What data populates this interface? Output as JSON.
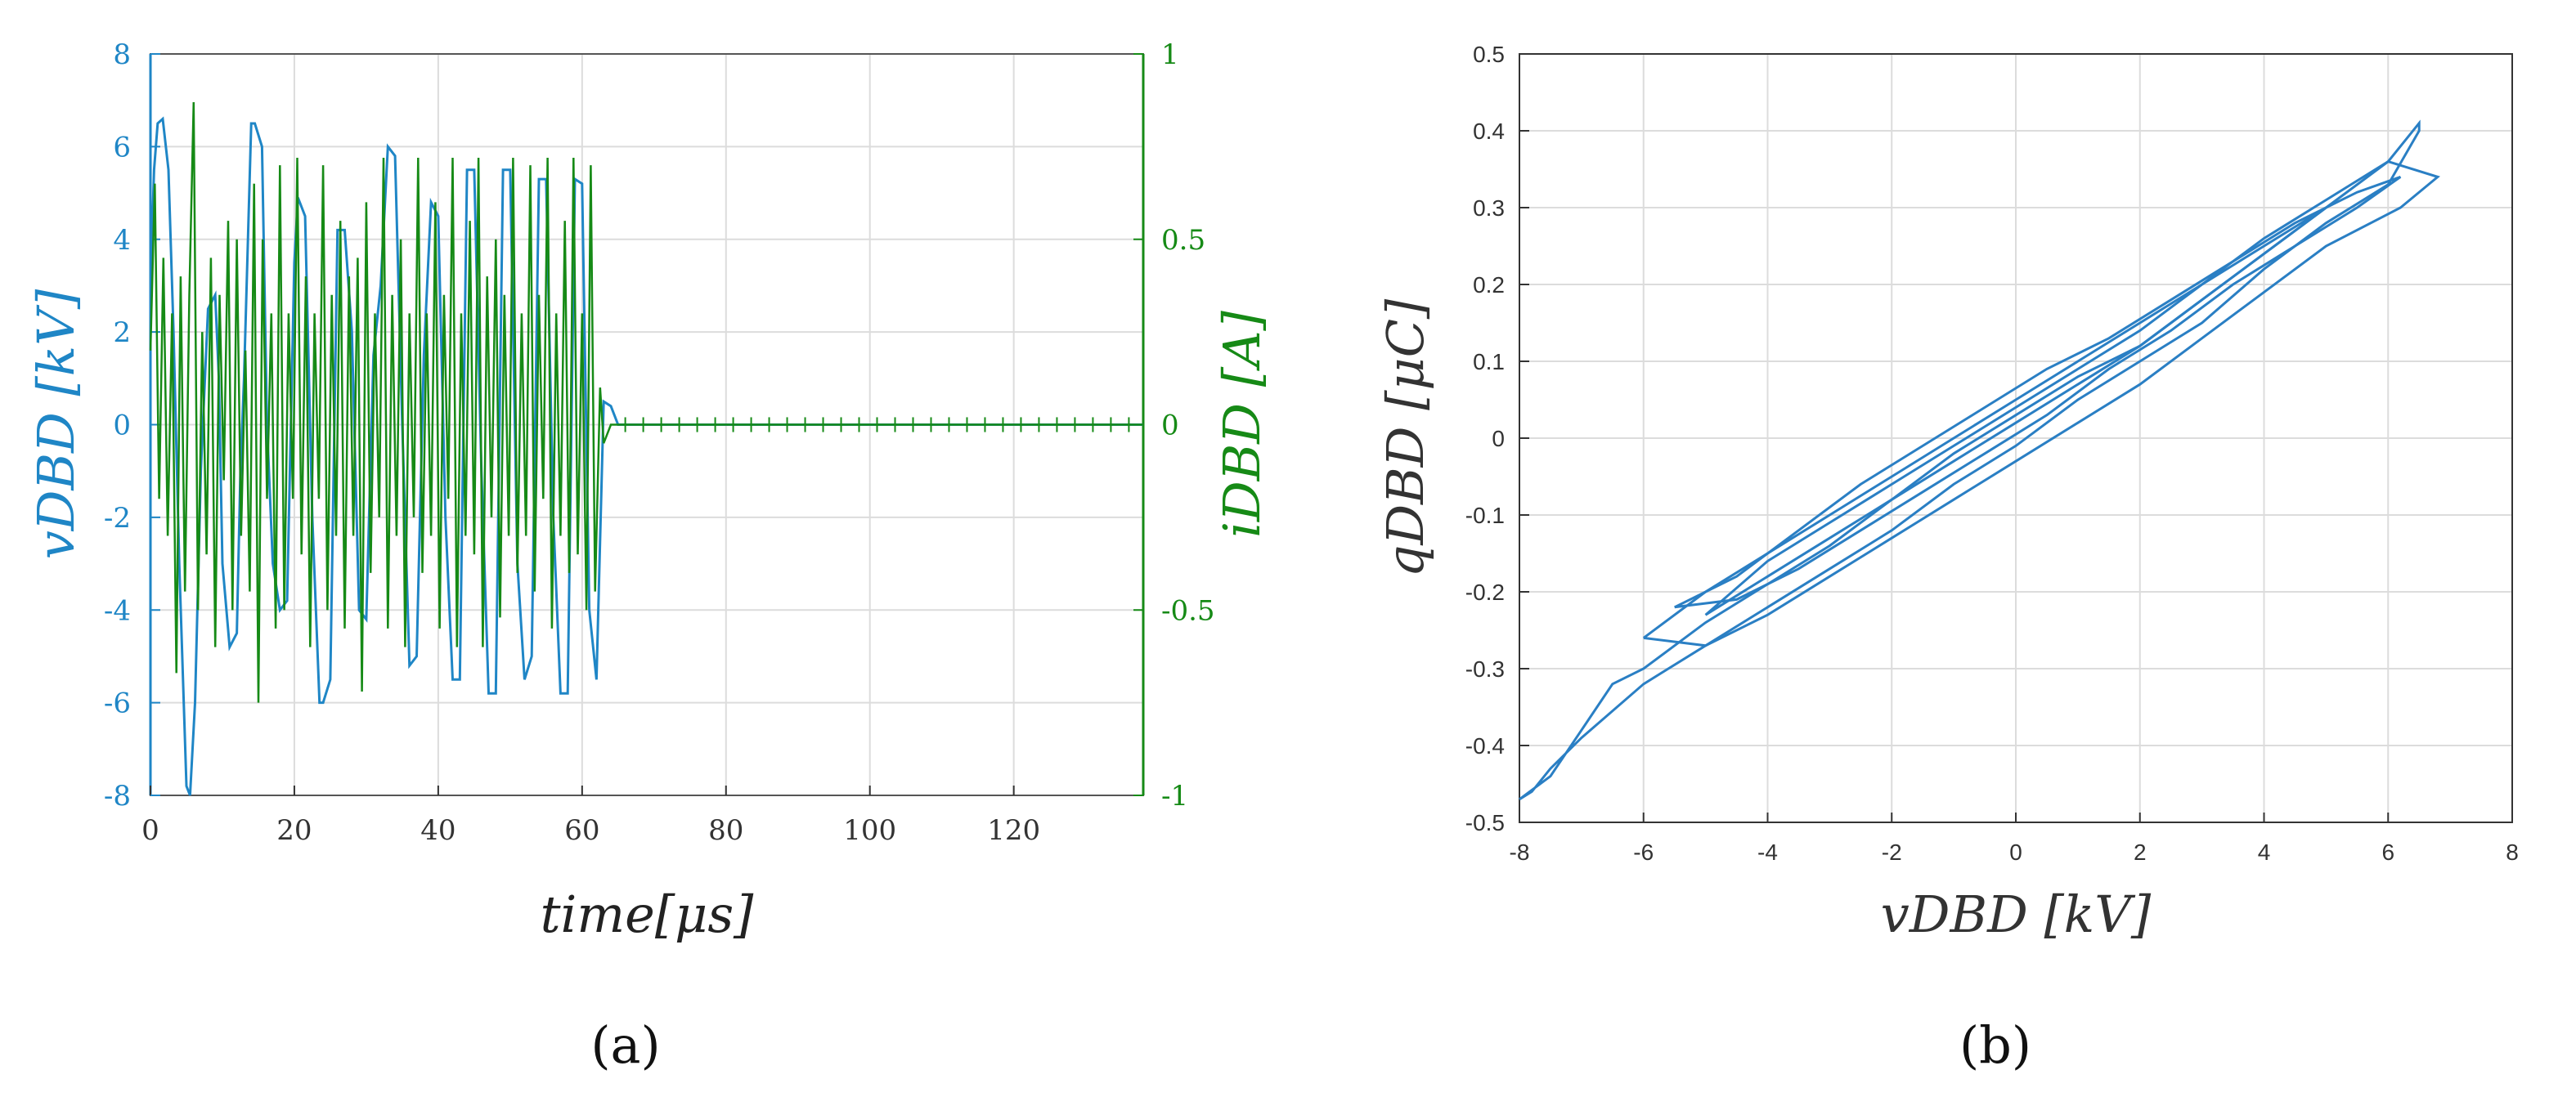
{
  "colors": {
    "voltage": "#1f86c6",
    "current": "#168a16",
    "loop": "#2a7fc4",
    "axis_b": "#333333"
  },
  "chart_data": [
    {
      "id": "a",
      "type": "line",
      "panel_label": "(a)",
      "xlabel": "time[μs]",
      "ylabel_left": "vDBD [kV]",
      "ylabel_right": "iDBD [A]",
      "xlim": [
        0,
        138
      ],
      "ylim_left": [
        -8,
        8
      ],
      "ylim_right": [
        -1,
        1
      ],
      "xticks": [
        0,
        20,
        40,
        60,
        80,
        100,
        120
      ],
      "yticks_left": [
        -8,
        -6,
        -4,
        -2,
        0,
        2,
        4,
        6,
        8
      ],
      "yticks_right": [
        -1,
        -0.5,
        0,
        0.5,
        1
      ],
      "grid": true,
      "series": [
        {
          "axis": "left",
          "x": [
            0,
            0.5,
            1,
            1.7,
            2.5,
            3.2,
            4,
            5,
            5.5,
            6.2,
            7,
            8,
            9,
            9.5,
            10,
            11,
            12,
            12.5,
            13,
            14,
            14.5,
            15.5,
            16.2,
            17,
            18,
            19,
            20,
            20.5,
            21.5,
            22.5,
            23.5,
            24,
            25,
            26,
            27,
            28,
            29,
            30,
            31,
            32,
            33,
            34,
            35,
            36,
            37,
            38,
            39,
            40,
            41,
            42,
            43,
            44,
            45,
            46,
            47,
            48,
            49,
            50,
            51,
            52,
            53,
            54,
            55,
            56,
            57,
            58,
            59,
            60,
            61,
            62,
            63,
            64,
            65,
            66,
            138
          ],
          "y": [
            3,
            5.5,
            6.5,
            6.6,
            5.5,
            2,
            -3,
            -7.8,
            -8,
            -6,
            -1,
            2.5,
            2.8,
            1,
            -3,
            -4.8,
            -4.5,
            -1,
            1,
            6.5,
            6.5,
            6,
            0,
            -3,
            -4,
            -3.8,
            3.5,
            4.9,
            4.5,
            -2,
            -6,
            -6,
            -5.5,
            4.2,
            4.2,
            2,
            -4,
            -4.2,
            1.5,
            3,
            6,
            5.8,
            0,
            -5.2,
            -5,
            1.5,
            4.8,
            4.5,
            -2,
            -5.5,
            -5.5,
            5.5,
            5.5,
            -1,
            -5.8,
            -5.8,
            5.5,
            5.5,
            -3,
            -5.5,
            -5,
            5.3,
            5.3,
            -2,
            -5.8,
            -5.8,
            5.3,
            5.2,
            -4,
            -5.5,
            0.5,
            0.4,
            0,
            0,
            0
          ]
        },
        {
          "axis": "right",
          "x": [
            0,
            0.6,
            1.2,
            1.8,
            2.4,
            3,
            3.6,
            4.2,
            4.8,
            5.4,
            6,
            6.6,
            7.2,
            7.8,
            8.4,
            9,
            9.6,
            10.2,
            10.8,
            11.4,
            12,
            12.6,
            13.2,
            13.8,
            14.4,
            15,
            15.6,
            16.2,
            16.8,
            17.4,
            18,
            18.6,
            19.2,
            19.8,
            20.4,
            21,
            21.6,
            22.2,
            22.8,
            23.4,
            24,
            24.6,
            25.2,
            25.8,
            26.4,
            27,
            27.6,
            28.2,
            28.8,
            29.4,
            30,
            30.6,
            31.2,
            31.8,
            32.4,
            33,
            33.6,
            34.2,
            34.8,
            35.4,
            36,
            36.6,
            37.2,
            37.8,
            38.4,
            39,
            39.6,
            40.2,
            40.8,
            41.4,
            42,
            42.6,
            43.2,
            43.8,
            44.4,
            45,
            45.6,
            46.2,
            46.8,
            47.4,
            48,
            48.6,
            49.2,
            49.8,
            50.4,
            51,
            51.6,
            52.2,
            52.8,
            53.4,
            54,
            54.6,
            55.2,
            55.8,
            56.4,
            57,
            57.6,
            58.2,
            58.8,
            59.4,
            60,
            60.6,
            61.2,
            61.8,
            62.5,
            63,
            64,
            138
          ],
          "y": [
            0.2,
            0.65,
            -0.2,
            0.45,
            -0.3,
            0.3,
            -0.67,
            0.4,
            -0.45,
            0.35,
            0.87,
            -0.5,
            0.25,
            -0.35,
            0.45,
            -0.6,
            0.35,
            -0.15,
            0.55,
            -0.5,
            0.5,
            -0.3,
            0.2,
            -0.45,
            0.65,
            -0.75,
            0.5,
            -0.2,
            0.3,
            -0.55,
            0.7,
            -0.5,
            0.3,
            -0.2,
            0.72,
            -0.35,
            0.4,
            -0.6,
            0.3,
            -0.2,
            0.7,
            -0.5,
            0.35,
            -0.3,
            0.55,
            -0.55,
            0.4,
            -0.3,
            0.45,
            -0.72,
            0.6,
            -0.4,
            0.3,
            -0.25,
            0.72,
            -0.55,
            0.35,
            -0.3,
            0.5,
            -0.6,
            0.3,
            -0.25,
            0.72,
            -0.4,
            0.3,
            -0.3,
            0.6,
            -0.55,
            0.35,
            -0.2,
            0.72,
            -0.6,
            0.3,
            -0.3,
            0.55,
            -0.35,
            0.72,
            -0.6,
            0.4,
            -0.25,
            0.5,
            -0.52,
            0.35,
            -0.3,
            0.72,
            -0.4,
            0.3,
            -0.3,
            0.7,
            -0.45,
            0.35,
            -0.2,
            0.72,
            -0.55,
            0.3,
            -0.3,
            0.55,
            -0.4,
            0.72,
            -0.35,
            0.3,
            -0.5,
            0.7,
            -0.45,
            0.1,
            -0.05,
            0,
            0
          ]
        }
      ]
    },
    {
      "id": "b",
      "type": "line",
      "panel_label": "(b)",
      "xlabel": "vDBD [kV]",
      "ylabel": "qDBD [μC]",
      "xlim": [
        -8,
        8
      ],
      "ylim": [
        -0.5,
        0.5
      ],
      "xticks": [
        -8,
        -6,
        -4,
        -2,
        0,
        2,
        4,
        6,
        8
      ],
      "yticks": [
        -0.5,
        -0.4,
        -0.3,
        -0.2,
        -0.1,
        0,
        0.1,
        0.2,
        0.3,
        0.4,
        0.5
      ],
      "grid": true,
      "series": [
        {
          "x": [
            -8,
            -7.5,
            -7,
            -6.5,
            -6,
            -5,
            -4,
            -3,
            -2,
            -1,
            0,
            1,
            2,
            3,
            4,
            5,
            6,
            6.5,
            6.5,
            6,
            5,
            4,
            3,
            2,
            1,
            0,
            -1,
            -2,
            -3,
            -4,
            -5,
            -6,
            -7,
            -7.5,
            -7.8,
            -8
          ],
          "y": [
            -0.47,
            -0.44,
            -0.38,
            -0.32,
            -0.3,
            -0.24,
            -0.19,
            -0.14,
            -0.08,
            -0.02,
            0.03,
            0.08,
            0.12,
            0.18,
            0.24,
            0.3,
            0.36,
            0.41,
            0.4,
            0.33,
            0.28,
            0.22,
            0.15,
            0.1,
            0.05,
            -0.01,
            -0.06,
            -0.12,
            -0.17,
            -0.22,
            -0.27,
            -0.32,
            -0.39,
            -0.43,
            -0.46,
            -0.47
          ]
        },
        {
          "x": [
            -6,
            -5,
            -4,
            -3,
            -2,
            -1,
            0,
            1,
            2,
            3,
            4,
            5,
            6,
            6.8,
            6.2,
            5,
            4,
            3,
            2,
            1,
            0,
            -1,
            -2,
            -3,
            -4,
            -5,
            -6
          ],
          "y": [
            -0.26,
            -0.2,
            -0.15,
            -0.1,
            -0.05,
            0,
            0.05,
            0.1,
            0.15,
            0.2,
            0.26,
            0.31,
            0.36,
            0.34,
            0.3,
            0.25,
            0.19,
            0.13,
            0.07,
            0.02,
            -0.03,
            -0.08,
            -0.13,
            -0.18,
            -0.23,
            -0.27,
            -0.26
          ]
        },
        {
          "x": [
            -5.5,
            -4.5,
            -3.5,
            -2.5,
            -1.5,
            -0.5,
            0.5,
            1.5,
            2.5,
            3.5,
            4.5,
            5.5,
            6.2,
            5.5,
            4.5,
            3.5,
            2.5,
            1.5,
            0.5,
            -0.5,
            -1.5,
            -2.5,
            -3.5,
            -4.5,
            -5.5
          ],
          "y": [
            -0.22,
            -0.18,
            -0.12,
            -0.06,
            -0.01,
            0.04,
            0.09,
            0.13,
            0.18,
            0.23,
            0.28,
            0.32,
            0.34,
            0.3,
            0.25,
            0.2,
            0.14,
            0.09,
            0.03,
            -0.02,
            -0.07,
            -0.12,
            -0.17,
            -0.21,
            -0.22
          ]
        },
        {
          "x": [
            -4,
            -3,
            -2,
            -1,
            0,
            1,
            2,
            3,
            4,
            5,
            4,
            3,
            2,
            1,
            0,
            -1,
            -2,
            -3,
            -4,
            -5,
            -4
          ],
          "y": [
            -0.16,
            -0.11,
            -0.06,
            -0.01,
            0.04,
            0.09,
            0.14,
            0.2,
            0.25,
            0.3,
            0.24,
            0.18,
            0.12,
            0.07,
            0.02,
            -0.03,
            -0.08,
            -0.13,
            -0.18,
            -0.23,
            -0.16
          ]
        }
      ]
    }
  ]
}
